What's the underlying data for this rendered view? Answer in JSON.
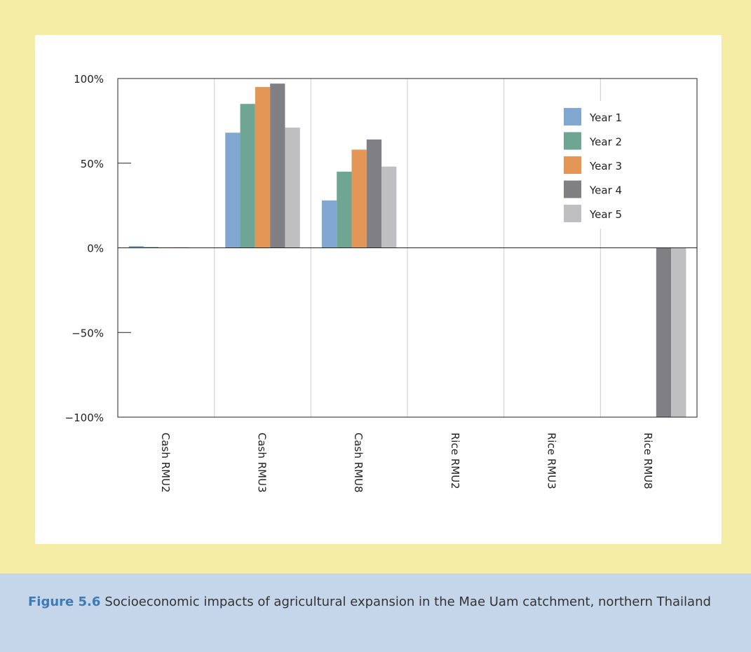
{
  "figure": {
    "label": "Figure 5.6",
    "caption": "Socioeconomic impacts of agricultural expansion in the Mae Uam catchment, northern Thailand"
  },
  "colors": {
    "page_background": "#f5eca6",
    "caption_background": "#c5d5ea",
    "figure_label": "#3b7bb7"
  },
  "chart_data": {
    "type": "bar",
    "categories": [
      "Cash RMU2",
      "Cash RMU3",
      "Cash RMU8",
      "Rice RMU2",
      "Rice RMU3",
      "Rice RMU8"
    ],
    "series": [
      {
        "name": "Year 1",
        "color": "#7fa7d2",
        "values": [
          1,
          68,
          28,
          0,
          0,
          0
        ]
      },
      {
        "name": "Year 2",
        "color": "#6fa593",
        "values": [
          0.5,
          85,
          45,
          0,
          0,
          0
        ]
      },
      {
        "name": "Year 3",
        "color": "#e39655",
        "values": [
          0.3,
          95,
          58,
          0,
          0,
          0
        ]
      },
      {
        "name": "Year 4",
        "color": "#7f7f84",
        "values": [
          0.3,
          97,
          64,
          0,
          0,
          -100
        ]
      },
      {
        "name": "Year 5",
        "color": "#bfbfc2",
        "values": [
          0,
          71,
          48,
          0,
          0,
          -100
        ]
      }
    ],
    "ylim": [
      -100,
      100
    ],
    "yticks": [
      100,
      50,
      0,
      -50,
      -100
    ],
    "ytick_labels": [
      "100%",
      "50%",
      "0%",
      "−50%",
      "−100%"
    ],
    "xlabel": "",
    "ylabel": "",
    "grid": "vertical",
    "legend_position": "top-right"
  }
}
